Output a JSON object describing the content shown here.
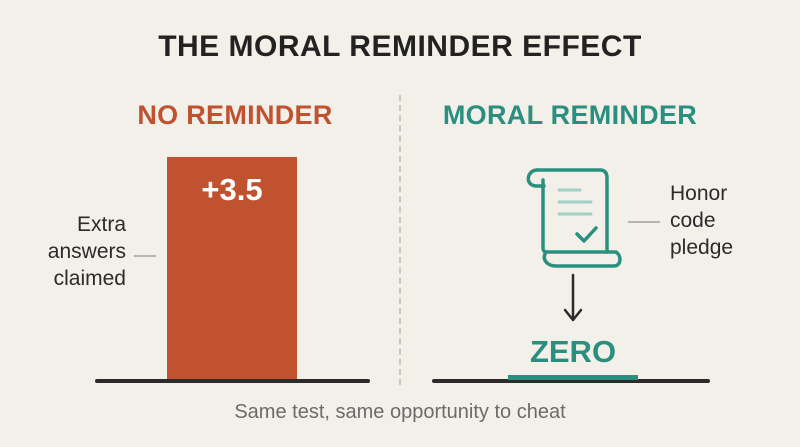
{
  "title": "THE MORAL REMINDER EFFECT",
  "left_panel": {
    "heading": "NO REMINDER",
    "bar_value_label": "+3.5",
    "axis_label_lines": [
      "Extra",
      "answers",
      "claimed"
    ]
  },
  "right_panel": {
    "heading": "MORAL REMINDER",
    "icon": "scroll-checkmark-icon",
    "callout_lines": [
      "Honor",
      "code",
      "pledge"
    ],
    "result_label": "ZERO"
  },
  "footer": "Same test, same opportunity to cheat",
  "colors": {
    "no_reminder": "#c0522f",
    "moral_reminder": "#2a8f7f",
    "background": "#f2f0e9"
  }
}
